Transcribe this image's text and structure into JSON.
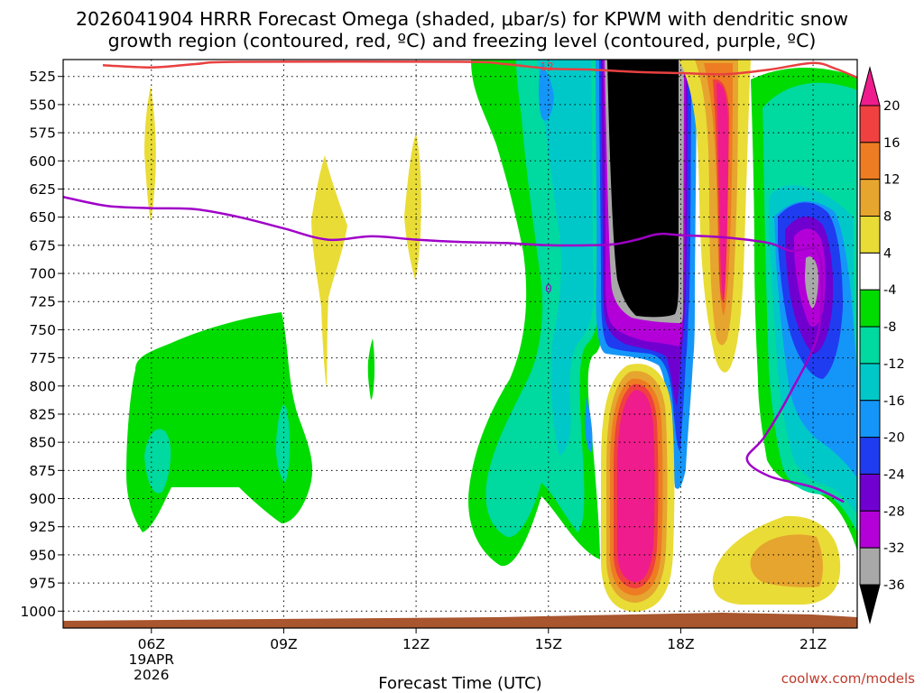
{
  "chart_data": {
    "type": "heatmap",
    "title_line1": "2026041904 HRRR Forecast Omega (shaded, μbar/s) for KPWM with dendritic snow",
    "title_line2": "growth region (contoured, red, ºC) and freezing level (contoured, purple, ºC)",
    "xlabel": "Forecast Time (UTC)",
    "credit": "coolwx.com/models",
    "y_axis": {
      "unit": "hPa",
      "ticks": [
        525,
        550,
        575,
        600,
        625,
        650,
        675,
        700,
        725,
        750,
        775,
        800,
        825,
        850,
        875,
        900,
        925,
        950,
        975,
        1000
      ],
      "range": [
        510,
        1015
      ]
    },
    "x_axis": {
      "ticks": [
        {
          "hour": 6,
          "label": "06Z",
          "sub": [
            "19APR",
            "2026"
          ]
        },
        {
          "hour": 9,
          "label": "09Z",
          "sub": []
        },
        {
          "hour": 12,
          "label": "12Z",
          "sub": []
        },
        {
          "hour": 15,
          "label": "15Z",
          "sub": []
        },
        {
          "hour": 18,
          "label": "18Z",
          "sub": []
        },
        {
          "hour": 21,
          "label": "21Z",
          "sub": []
        }
      ],
      "range": [
        4,
        22
      ]
    },
    "grid": true,
    "colorbar": {
      "levels": [
        -40,
        -36,
        -32,
        -28,
        -24,
        -20,
        -16,
        -12,
        -8,
        -4,
        4,
        8,
        12,
        16,
        20,
        24
      ],
      "labels": [
        "20",
        "16",
        "12",
        "8",
        "4",
        "-4",
        "-8",
        "-12",
        "-16",
        "-20",
        "-24",
        "-28",
        "-32",
        "-36"
      ],
      "colors": [
        "#000000",
        "#a8a8a8",
        "#b400d8",
        "#7000d0",
        "#1f3cf0",
        "#1496f8",
        "#00c8c8",
        "#00d9a0",
        "#00dc00",
        "#ffffff",
        "#e9dc36",
        "#e6a52e",
        "#ee7c22",
        "#f04040",
        "#ee1c8c"
      ]
    },
    "contour_labels": {
      "dgz": "-12",
      "freezing": "0"
    },
    "freezing_level": {
      "color": "#a000c8",
      "points": [
        [
          4,
          632
        ],
        [
          5,
          640
        ],
        [
          6,
          642
        ],
        [
          7,
          643
        ],
        [
          8,
          650
        ],
        [
          9,
          660
        ],
        [
          10,
          670
        ],
        [
          11,
          667
        ],
        [
          12,
          670
        ],
        [
          13,
          672
        ],
        [
          14,
          673
        ],
        [
          15,
          675
        ],
        [
          16,
          675
        ],
        [
          16.5,
          674
        ],
        [
          17,
          670
        ],
        [
          17.5,
          665
        ],
        [
          18,
          666
        ],
        [
          19,
          668
        ],
        [
          20,
          673
        ],
        [
          20.5,
          680
        ],
        [
          21,
          677
        ],
        [
          21.1,
          680
        ],
        [
          21.2,
          700
        ],
        [
          21.1,
          755
        ],
        [
          20.5,
          805
        ],
        [
          19.9,
          845
        ],
        [
          19.5,
          865
        ],
        [
          20,
          880
        ],
        [
          21,
          890
        ],
        [
          21.7,
          903
        ]
      ]
    },
    "dgz_contour": {
      "color": "#e84040",
      "points": [
        [
          4.9,
          515
        ],
        [
          6,
          517
        ],
        [
          7,
          514
        ],
        [
          8,
          512
        ],
        [
          13,
          512
        ],
        [
          14,
          514
        ],
        [
          15,
          518
        ],
        [
          16,
          519
        ],
        [
          17,
          521
        ],
        [
          18,
          522
        ],
        [
          19,
          523
        ],
        [
          20,
          519
        ],
        [
          21,
          513
        ],
        [
          21.5,
          518
        ],
        [
          22,
          526
        ]
      ]
    }
  }
}
